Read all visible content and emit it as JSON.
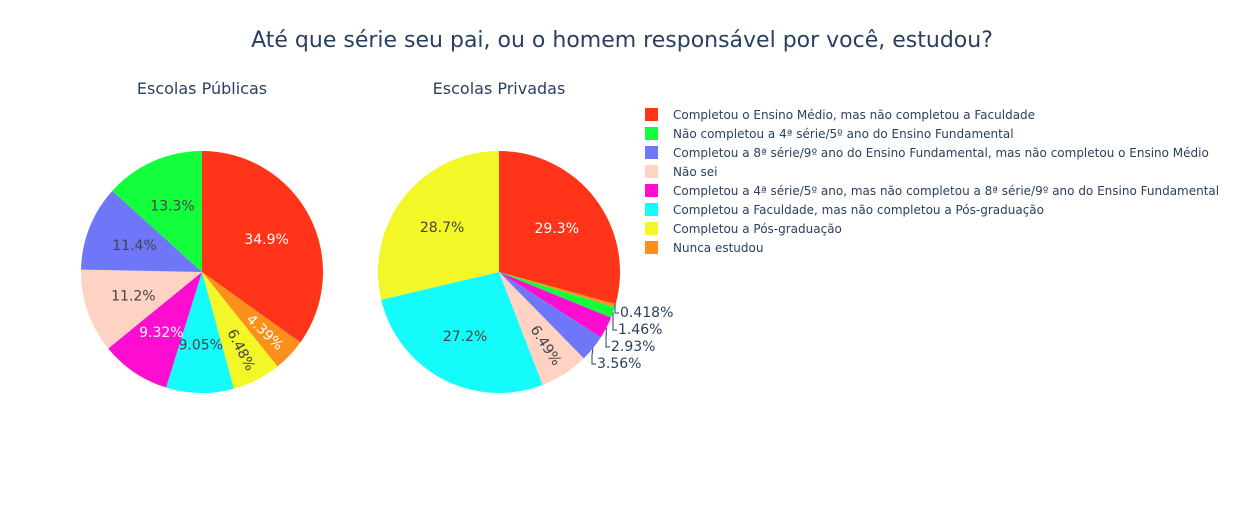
{
  "title": "Até que série seu pai, ou o homem responsável por você, estudou?",
  "legend": [
    {
      "label": "Completou o Ensino Médio, mas não completou a Faculdade",
      "color": "#ff3418"
    },
    {
      "label": "Não completou a 4ª série/5º ano do Ensino Fundamental",
      "color": "#13ff3b"
    },
    {
      "label": "Completou a 8ª série/9º ano do Ensino Fundamental, mas não completou o Ensino Médio",
      "color": "#6d77f8"
    },
    {
      "label": "Não sei",
      "color": "#ffd2c3"
    },
    {
      "label": "Completou a 4ª série/5º ano, mas não completou a 8ª série/9º ano do Ensino Fundamental",
      "color": "#fc0dd0"
    },
    {
      "label": "Completou a Faculdade, mas não completou a Pós-graduação",
      "color": "#14fbfb"
    },
    {
      "label": "Completou a Pós-graduação",
      "color": "#f3f727"
    },
    {
      "label": "Nunca estudou",
      "color": "#fd8f1b"
    }
  ],
  "chart_data": [
    {
      "type": "pie",
      "title": "Escolas Públicas",
      "slices": [
        {
          "category": 0,
          "value": 34.9,
          "label": "34.9%"
        },
        {
          "category": 7,
          "value": 4.39,
          "label": "4.39%"
        },
        {
          "category": 6,
          "value": 6.48,
          "label": "6.48%"
        },
        {
          "category": 5,
          "value": 9.05,
          "label": "9.05%"
        },
        {
          "category": 4,
          "value": 9.32,
          "label": "9.32%"
        },
        {
          "category": 3,
          "value": 11.2,
          "label": "11.2%"
        },
        {
          "category": 2,
          "value": 11.4,
          "label": "11.4%"
        },
        {
          "category": 1,
          "value": 13.3,
          "label": "13.3%"
        }
      ]
    },
    {
      "type": "pie",
      "title": "Escolas Privadas",
      "slices": [
        {
          "category": 0,
          "value": 29.3,
          "label": "29.3%"
        },
        {
          "category": 7,
          "value": 0.418,
          "label": "0.418%"
        },
        {
          "category": 1,
          "value": 1.46,
          "label": "1.46%"
        },
        {
          "category": 4,
          "value": 2.93,
          "label": "2.93%"
        },
        {
          "category": 2,
          "value": 3.56,
          "label": "3.56%"
        },
        {
          "category": 3,
          "value": 6.49,
          "label": "6.49%"
        },
        {
          "category": 5,
          "value": 27.2,
          "label": "27.2%"
        },
        {
          "category": 6,
          "value": 28.7,
          "label": "28.7%"
        }
      ]
    }
  ]
}
